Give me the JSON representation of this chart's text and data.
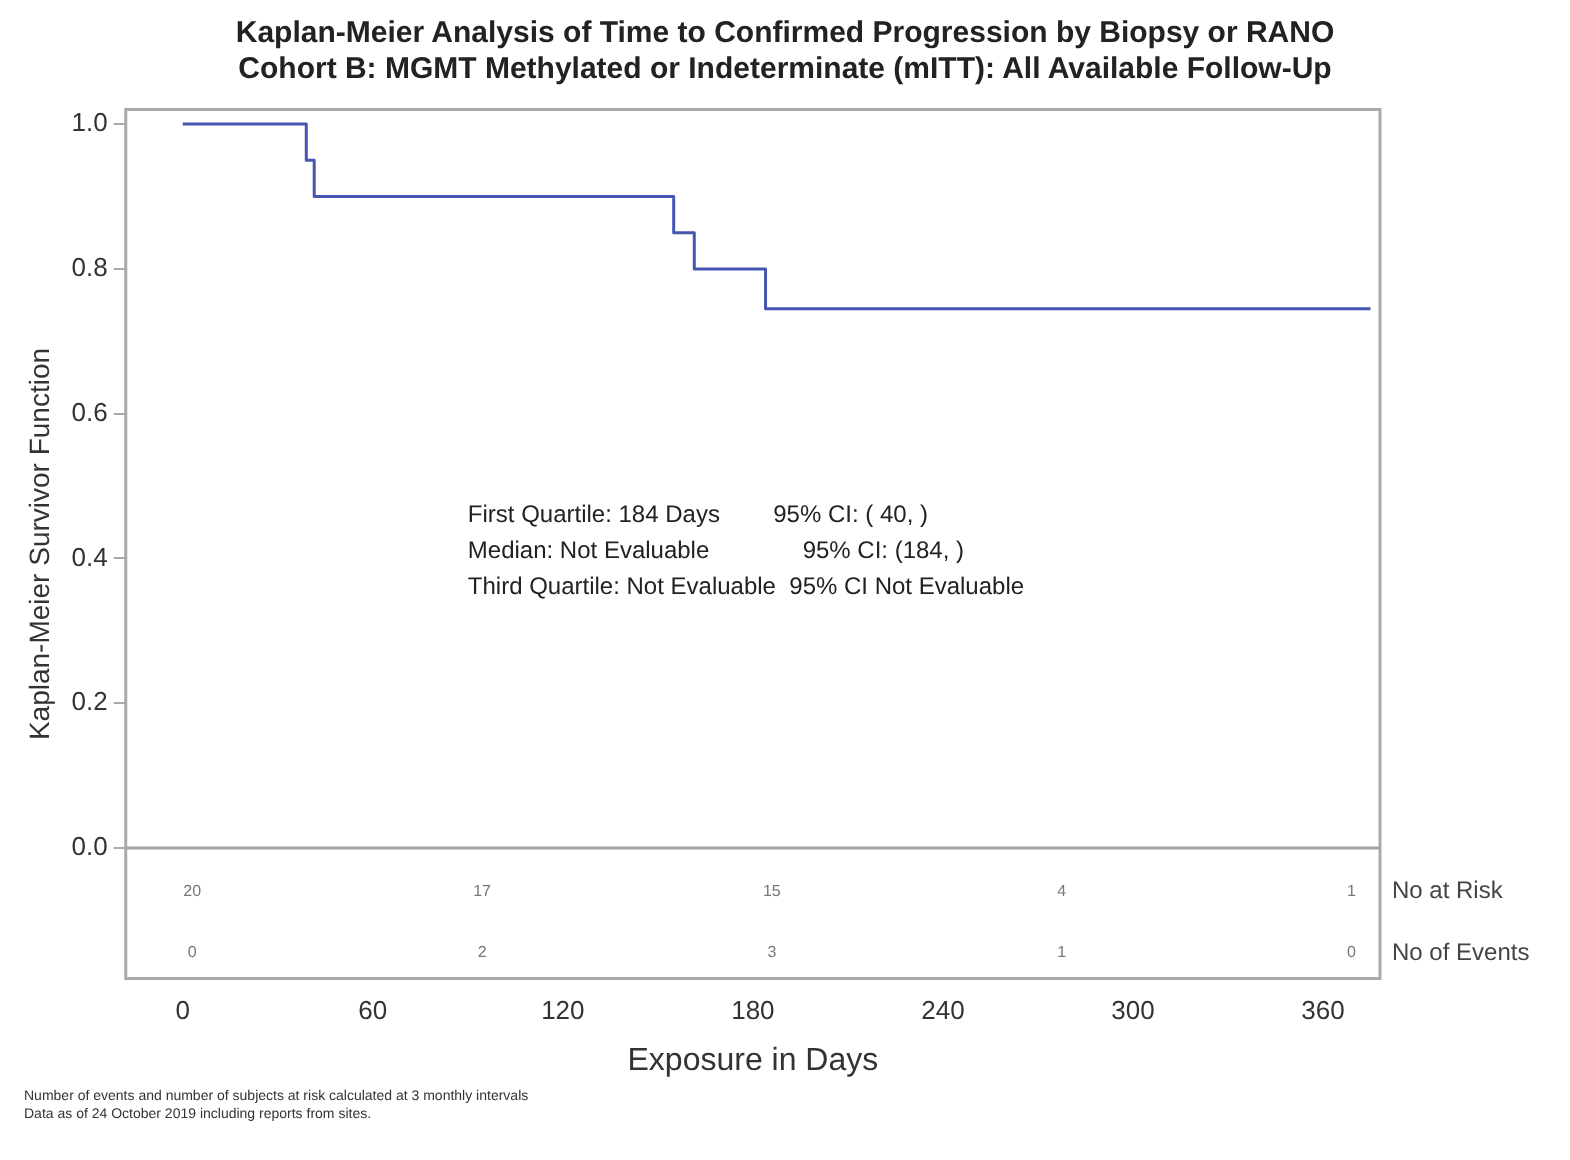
{
  "chart_data": {
    "type": "step",
    "title": "Kaplan-Meier Analysis of Time to Confirmed Progression by Biopsy or RANO",
    "subtitle": "Cohort B: MGMT Methylated or Indeterminate (mITT): All Available Follow-Up",
    "xlabel": "Exposure in Days",
    "ylabel": "Kaplan-Meier Survivor Function",
    "series": [
      {
        "color": "#4656b0",
        "x": [
          0,
          39,
          41.5,
          155,
          161.5,
          184,
          375
        ],
        "values": [
          1,
          0.95,
          0.9,
          0.85,
          0.8,
          0.745,
          0.745
        ]
      }
    ],
    "xlim": [
      -18,
      378
    ],
    "xticks": [
      0,
      60,
      120,
      180,
      240,
      300,
      360
    ],
    "ylim": [
      -0.18,
      1.02
    ],
    "yticks": [
      {
        "value": 0,
        "label": "0.0"
      },
      {
        "value": 0.2,
        "label": "0.2"
      },
      {
        "value": 0.4,
        "label": "0.4"
      },
      {
        "value": 0.6,
        "label": "0.6"
      },
      {
        "value": 0.8,
        "label": "0.8"
      },
      {
        "value": 1,
        "label": "1.0"
      }
    ],
    "ref_lines": [
      {
        "axis": "y",
        "value": 0,
        "color": "#a0a0a0"
      }
    ],
    "grid": false,
    "legend": false,
    "marker": "none",
    "line_style": "solid",
    "annotations": [
      "First Quartile: 184 Days        95% CI: ( 40, )",
      "Median: Not Evaluable              95% CI: (184, )",
      "Third Quartile: Not Evaluable  95% CI Not Evaluable",
      "No at Risk",
      "No of Events",
      "20",
      "17",
      "15",
      "4",
      "1",
      "0",
      "2",
      "3",
      "1",
      "0",
      "Number of events and number of subjects at risk calculated at 3 monthly intervals",
      "Data as of 24 October 2019 including reports from sites."
    ]
  }
}
